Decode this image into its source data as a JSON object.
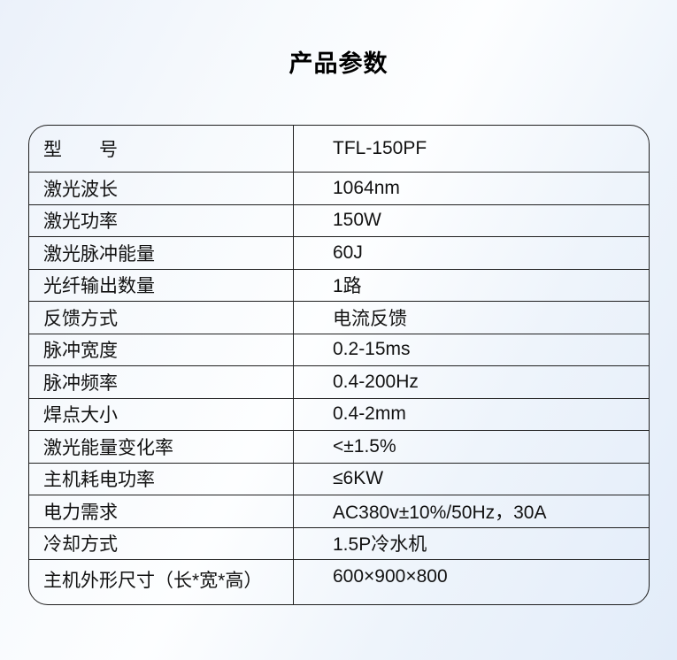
{
  "page": {
    "title": "产品参数"
  },
  "theme": {
    "background_top_left": "#ebf1fa",
    "background_center": "#fdfeff",
    "background_bottom_right": "#e2ecf9",
    "table_border_color": "#1f1f1f",
    "text_color": "#111111"
  },
  "table": {
    "rows": [
      {
        "label": "型　　号",
        "value": "TFL-150PF"
      },
      {
        "label": "激光波长",
        "value": "1064nm"
      },
      {
        "label": "激光功率",
        "value": "150W"
      },
      {
        "label": "激光脉冲能量",
        "value": "60J"
      },
      {
        "label": "光纤输出数量",
        "value": "1路"
      },
      {
        "label": "反馈方式",
        "value": "电流反馈"
      },
      {
        "label": "脉冲宽度",
        "value": "0.2-15ms"
      },
      {
        "label": "脉冲频率",
        "value": "0.4-200Hz"
      },
      {
        "label": "焊点大小",
        "value": "0.4-2mm"
      },
      {
        "label": "激光能量变化率",
        "value": "<±1.5%"
      },
      {
        "label": "主机耗电功率",
        "value": "≤6KW"
      },
      {
        "label": "电力需求",
        "value": "AC380v±10%/50Hz，30A"
      },
      {
        "label": "冷却方式",
        "value": "1.5P冷水机"
      },
      {
        "label": "主机外形尺寸（长*宽*高）",
        "value": "600×900×800"
      }
    ]
  }
}
